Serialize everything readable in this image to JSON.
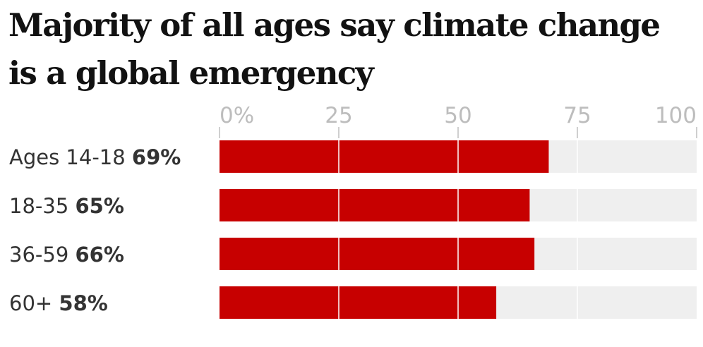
{
  "chart_data": {
    "type": "bar",
    "orientation": "horizontal",
    "title": "Majority of all ages say climate change is a global emergency",
    "categories": [
      "Ages 14-18",
      "18-35",
      "36-59",
      "60+"
    ],
    "values": [
      69,
      65,
      66,
      58
    ],
    "value_labels": [
      "69%",
      "65%",
      "66%",
      "58%"
    ],
    "xlim": [
      0,
      100
    ],
    "x_ticks": [
      0,
      25,
      50,
      75,
      100
    ],
    "x_tick_labels": [
      "0%",
      "25",
      "50",
      "75",
      "100"
    ],
    "grid": true,
    "legend": "none",
    "colors": {
      "bar": "#c70000",
      "track": "#efefef",
      "gridline": "#ffffff",
      "tick_text": "#bdbdbd",
      "label_text": "#333333",
      "title_text": "#121212"
    }
  }
}
